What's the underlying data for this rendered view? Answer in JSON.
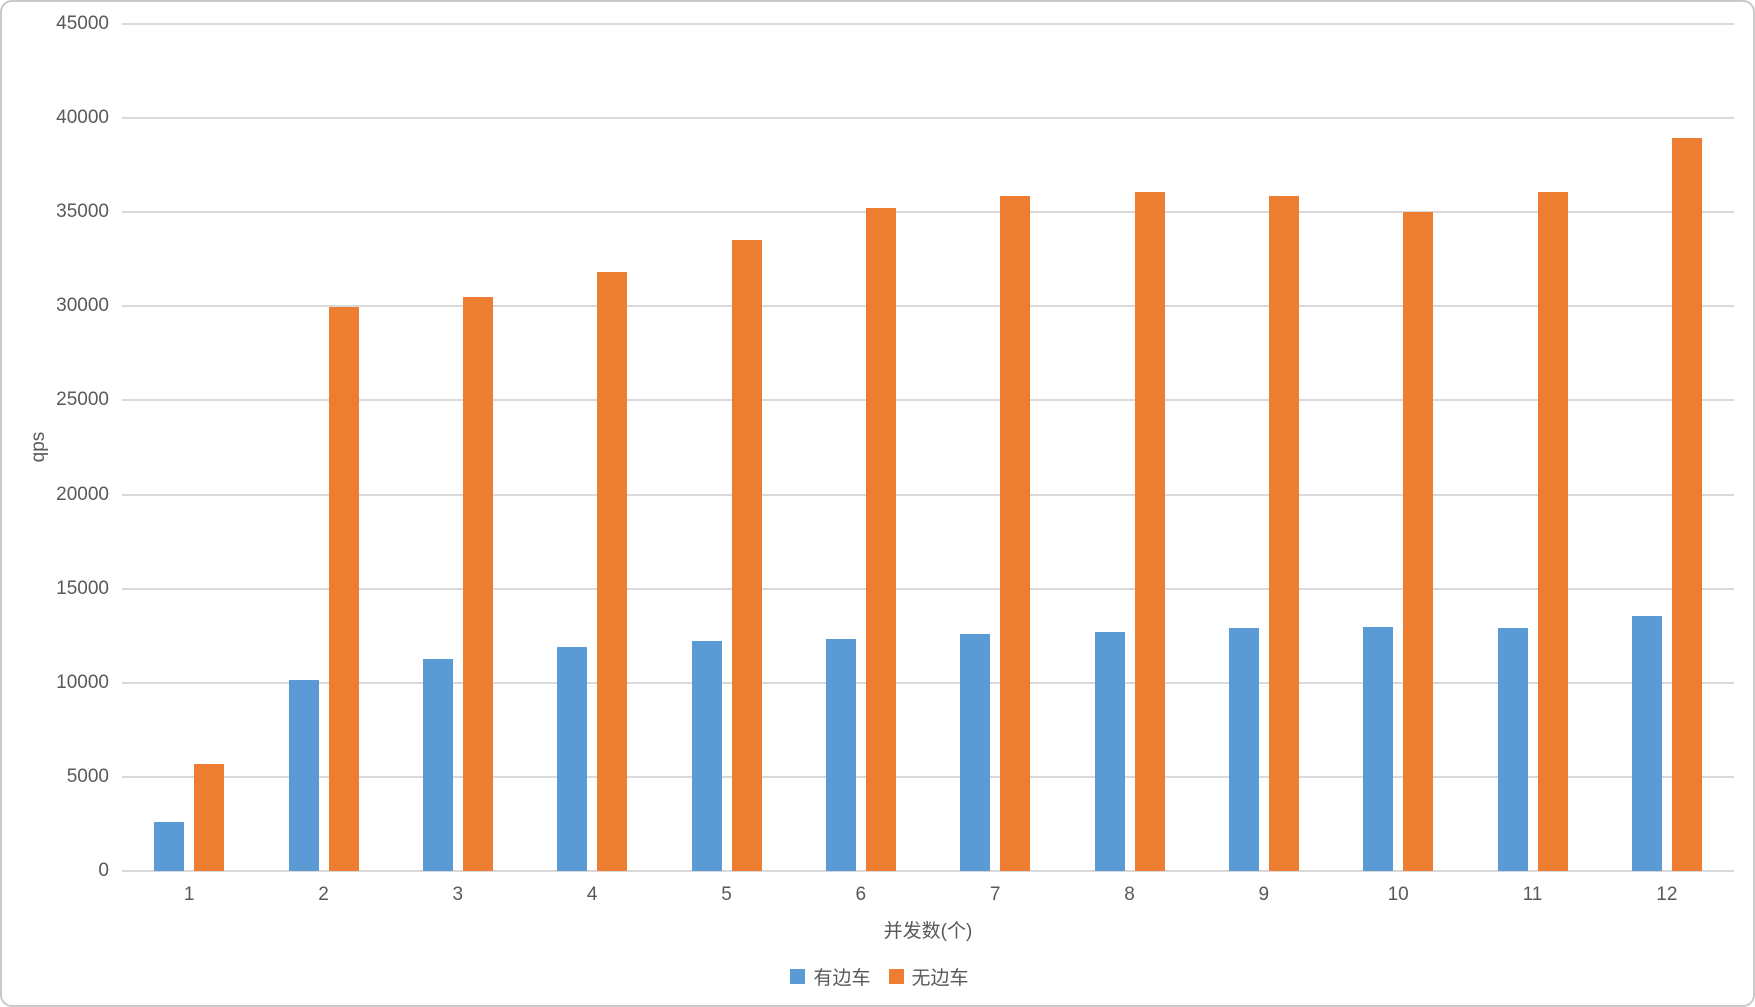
{
  "chart_data": {
    "type": "bar",
    "title": "",
    "categories": [
      "1",
      "2",
      "3",
      "4",
      "5",
      "6",
      "7",
      "8",
      "9",
      "10",
      "11",
      "12"
    ],
    "series": [
      {
        "name": "有边车",
        "color": "#5B9BD5",
        "values": [
          2600,
          10150,
          11250,
          11900,
          12200,
          12350,
          12600,
          12700,
          12900,
          12950,
          12900,
          13550
        ]
      },
      {
        "name": "无边车",
        "color": "#ED7D31",
        "values": [
          5700,
          29950,
          30500,
          31800,
          33550,
          35200,
          35850,
          36050,
          35850,
          35000,
          36100,
          38950
        ]
      }
    ],
    "xlabel": "并发数(个)",
    "ylabel": "qps",
    "ylim": [
      0,
      45000
    ],
    "ytick_interval": 5000,
    "ytick_labels": [
      "0",
      "5000",
      "10000",
      "15000",
      "20000",
      "25000",
      "30000",
      "35000",
      "40000",
      "45000"
    ],
    "grid": true,
    "legend_position": "bottom"
  },
  "style": {
    "grid_color": "#D9D9D9",
    "text_color": "#595959",
    "frame_color": "#C9C9C9",
    "background": "#FFFFFF"
  }
}
